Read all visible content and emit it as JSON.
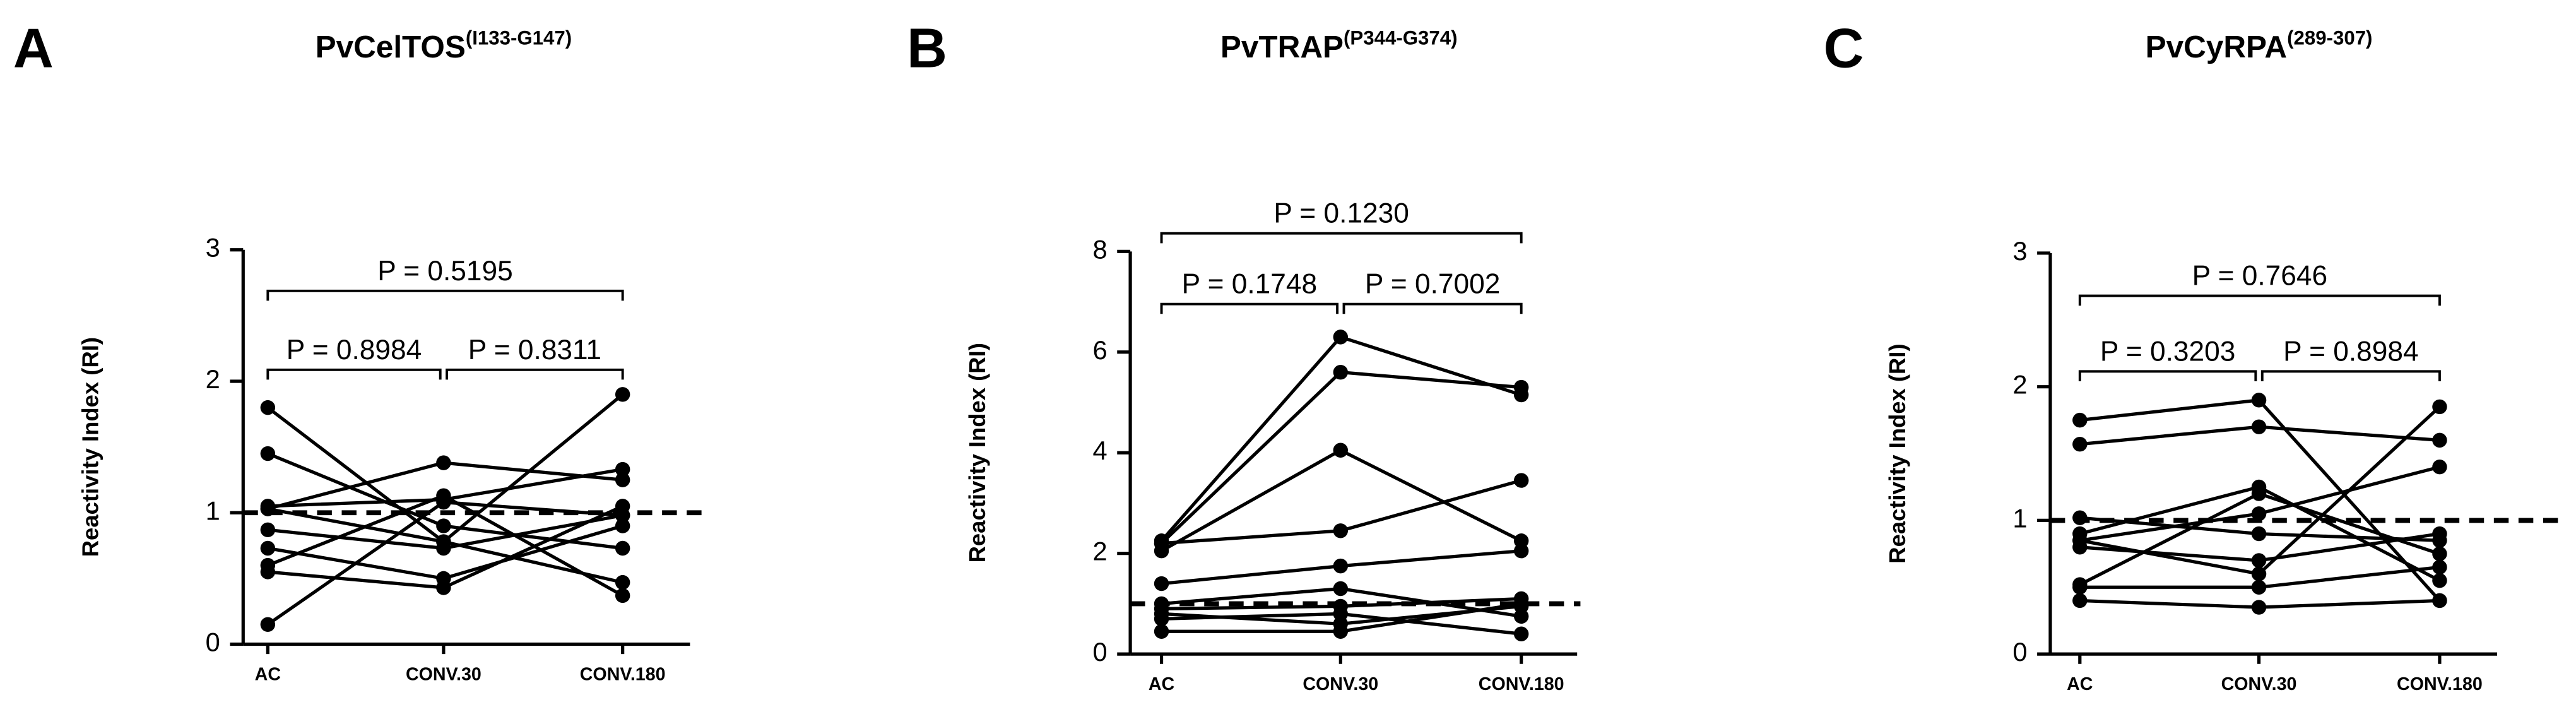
{
  "chart_data": [
    {
      "type": "line",
      "panel": "A",
      "title": "PvCelTOS",
      "title_superscript": "(I133-G147)",
      "y_label": "Reactivity Index (RI)",
      "categories": [
        "AC",
        "CONV.30",
        "CONV.180"
      ],
      "ylim": [
        0,
        3
      ],
      "yticks": [
        0,
        1,
        2,
        3
      ],
      "threshold": 1,
      "color": "#000000",
      "series": [
        {
          "values": [
            1.8,
            0.78,
            0.47
          ]
        },
        {
          "values": [
            1.45,
            0.9,
            0.73
          ]
        },
        {
          "values": [
            1.05,
            1.1,
            1.33
          ]
        },
        {
          "values": [
            1.03,
            1.38,
            1.25
          ]
        },
        {
          "values": [
            0.87,
            0.73,
            0.98
          ]
        },
        {
          "values": [
            0.73,
            0.5,
            0.9
          ]
        },
        {
          "values": [
            0.6,
            1.13,
            0.37
          ]
        },
        {
          "values": [
            0.55,
            0.43,
            1.05
          ]
        },
        {
          "values": [
            0.15,
            1.08,
            0.98
          ]
        },
        {
          "values": [
            1.03,
            0.78,
            1.9
          ]
        }
      ],
      "p_labels": [
        "P = 0.8984",
        "P = 0.8311",
        "P = 0.5195"
      ]
    },
    {
      "type": "line",
      "panel": "B",
      "title": "PvTRAP",
      "title_superscript": "(P344-G374)",
      "y_label": "Reactivity Index (RI)",
      "categories": [
        "AC",
        "CONV.30",
        "CONV.180"
      ],
      "ylim": [
        0,
        8
      ],
      "yticks": [
        0,
        2,
        4,
        6,
        8
      ],
      "threshold": 1,
      "color": "#000000",
      "series": [
        {
          "values": [
            2.25,
            6.3,
            5.15
          ]
        },
        {
          "values": [
            2.2,
            5.6,
            5.3
          ]
        },
        {
          "values": [
            2.05,
            4.05,
            2.25
          ]
        },
        {
          "values": [
            2.2,
            2.45,
            3.45
          ]
        },
        {
          "values": [
            1.4,
            1.75,
            2.05
          ]
        },
        {
          "values": [
            1.0,
            1.3,
            0.75
          ]
        },
        {
          "values": [
            0.9,
            0.95,
            1.1
          ]
        },
        {
          "values": [
            0.8,
            0.6,
            0.95
          ]
        },
        {
          "values": [
            0.7,
            0.8,
            0.4
          ]
        },
        {
          "values": [
            0.45,
            0.45,
            1.0
          ]
        }
      ],
      "p_labels": [
        "P = 0.1748",
        "P = 0.7002",
        "P = 0.1230"
      ]
    },
    {
      "type": "line",
      "panel": "C",
      "title": "PvCyRPA",
      "title_superscript": "(289-307)",
      "y_label": "Reactivity Index (RI)",
      "categories": [
        "AC",
        "CONV.30",
        "CONV.180"
      ],
      "ylim": [
        0,
        3
      ],
      "yticks": [
        0,
        1,
        2,
        3
      ],
      "threshold": 1,
      "color": "#000000",
      "series": [
        {
          "values": [
            1.75,
            1.9,
            0.4
          ]
        },
        {
          "values": [
            1.57,
            1.7,
            1.6
          ]
        },
        {
          "values": [
            1.02,
            0.9,
            0.85
          ]
        },
        {
          "values": [
            0.9,
            1.25,
            0.55
          ]
        },
        {
          "values": [
            0.85,
            1.05,
            1.4
          ]
        },
        {
          "values": [
            0.8,
            0.7,
            0.9
          ]
        },
        {
          "values": [
            0.52,
            1.2,
            0.75
          ]
        },
        {
          "values": [
            0.5,
            0.5,
            0.65
          ]
        },
        {
          "values": [
            0.4,
            0.35,
            0.4
          ]
        },
        {
          "values": [
            0.85,
            0.6,
            1.85
          ]
        }
      ],
      "p_labels": [
        "P = 0.3203",
        "P = 0.8984",
        "P = 0.7646"
      ]
    }
  ]
}
